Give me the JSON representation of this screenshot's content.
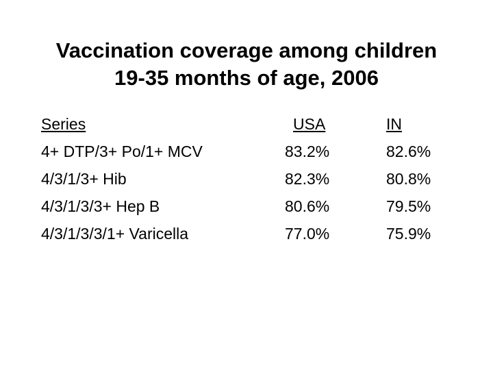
{
  "title": {
    "line1": "Vaccination coverage among children",
    "line2": "19-35 months of age, 2006"
  },
  "table": {
    "headers": [
      "Series",
      "USA",
      "IN"
    ],
    "rows": [
      [
        "4+ DTP/3+ Po/1+ MCV",
        "83.2%",
        "82.6%"
      ],
      [
        "4/3/1/3+ Hib",
        "82.3%",
        "80.8%"
      ],
      [
        "4/3/1/3/3+ Hep B",
        "80.6%",
        "79.5%"
      ],
      [
        "4/3/1/3/3/1+ Varicella",
        "77.0%",
        "75.9%"
      ]
    ]
  }
}
